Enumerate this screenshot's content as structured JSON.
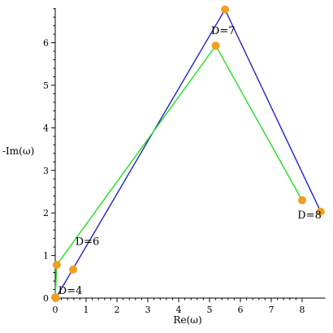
{
  "chart_data": {
    "type": "line",
    "title": "",
    "xlabel": "Re(ω)",
    "ylabel": "-Im(ω)",
    "xlim": [
      0,
      8.7
    ],
    "ylim": [
      0,
      6.8
    ],
    "x_ticks": [
      0,
      1,
      2,
      3,
      4,
      5,
      6,
      7,
      8
    ],
    "y_ticks": [
      0,
      1,
      2,
      3,
      4,
      5,
      6
    ],
    "grid": false,
    "series": [
      {
        "color": "#2222cc",
        "points": [
          [
            0.02,
            0.0
          ],
          [
            5.5,
            6.78
          ],
          [
            8.6,
            2.03
          ]
        ]
      },
      {
        "color": "#22dd22",
        "points": [
          [
            0.0,
            0.0
          ],
          [
            0.05,
            0.78
          ],
          [
            5.2,
            5.93
          ],
          [
            8.0,
            2.3
          ]
        ]
      }
    ],
    "markers": {
      "color": "#f0a020",
      "points": [
        [
          0.02,
          0.0
        ],
        [
          0.0,
          0.02
        ],
        [
          0.05,
          0.78
        ],
        [
          0.58,
          0.67
        ],
        [
          5.2,
          5.93
        ],
        [
          5.5,
          6.78
        ],
        [
          8.0,
          2.3
        ],
        [
          8.6,
          2.03
        ]
      ]
    },
    "annotations": [
      {
        "text": "D=4",
        "x": 0.1,
        "y": 0.1
      },
      {
        "text": "D=6",
        "x": 0.65,
        "y": 1.25
      },
      {
        "text": "D=7",
        "x": 5.05,
        "y": 6.2
      },
      {
        "text": "D=8",
        "x": 7.85,
        "y": 1.87
      }
    ]
  }
}
